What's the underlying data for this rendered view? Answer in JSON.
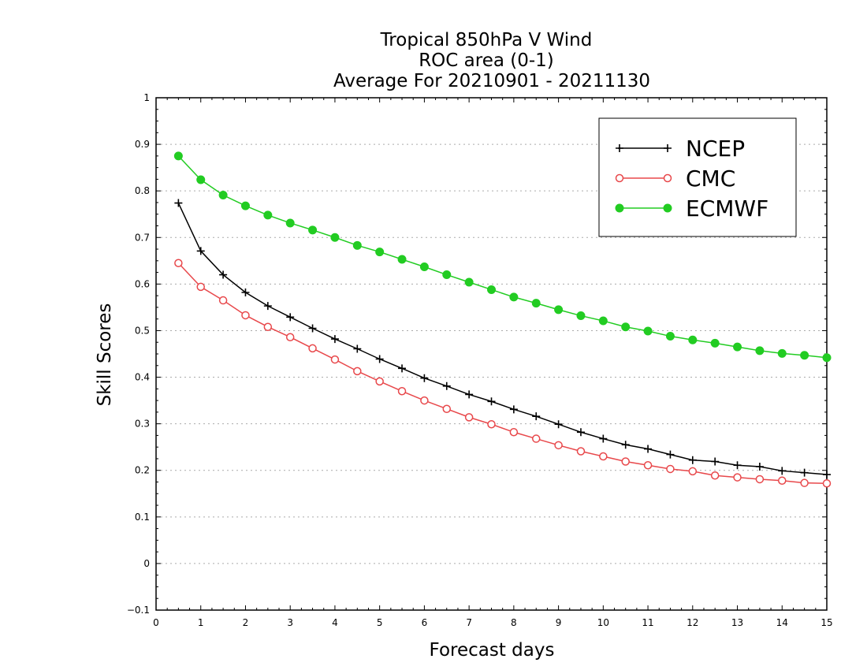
{
  "chart_data": {
    "type": "line",
    "title_lines": [
      "Tropical 850hPa V Wind",
      "ROC area (0-1)",
      "Average For 20210901 - 20211130"
    ],
    "xlabel": "Forecast days",
    "ylabel": "Skill Scores",
    "xlim": [
      0,
      15
    ],
    "ylim": [
      -0.1,
      1
    ],
    "x_ticks": [
      "0",
      "1",
      "2",
      "3",
      "4",
      "5",
      "6",
      "7",
      "8",
      "9",
      "10",
      "11",
      "12",
      "13",
      "14",
      "15"
    ],
    "y_ticks": [
      "−0.1",
      "0",
      "0.1",
      "0.2",
      "0.3",
      "0.4",
      "0.5",
      "0.6",
      "0.7",
      "0.8",
      "0.9",
      "1"
    ],
    "grid": "horizontal dotted",
    "legend_position": "top-right",
    "x": [
      0.5,
      1,
      1.5,
      2,
      2.5,
      3,
      3.5,
      4,
      4.5,
      5,
      5.5,
      6,
      6.5,
      7,
      7.5,
      8,
      8.5,
      9,
      9.5,
      10,
      10.5,
      11,
      11.5,
      12,
      12.5,
      13,
      13.5,
      14,
      14.5,
      15
    ],
    "series": [
      {
        "name": "NCEP",
        "color": "#000000",
        "marker": "plus",
        "values": [
          0.774,
          0.671,
          0.62,
          0.582,
          0.553,
          0.529,
          0.505,
          0.482,
          0.461,
          0.439,
          0.419,
          0.398,
          0.381,
          0.363,
          0.348,
          0.331,
          0.316,
          0.299,
          0.282,
          0.268,
          0.255,
          0.246,
          0.234,
          0.222,
          0.219,
          0.211,
          0.208,
          0.199,
          0.195,
          0.191
        ]
      },
      {
        "name": "CMC",
        "color": "#e8484b",
        "marker": "open-circle",
        "values": [
          0.645,
          0.594,
          0.565,
          0.533,
          0.508,
          0.486,
          0.462,
          0.438,
          0.413,
          0.391,
          0.37,
          0.35,
          0.332,
          0.314,
          0.299,
          0.282,
          0.268,
          0.254,
          0.241,
          0.23,
          0.219,
          0.211,
          0.203,
          0.198,
          0.189,
          0.185,
          0.181,
          0.178,
          0.173,
          0.172
        ]
      },
      {
        "name": "ECMWF",
        "color": "#22cc22",
        "marker": "filled-circle",
        "values": [
          0.875,
          0.824,
          0.791,
          0.768,
          0.748,
          0.731,
          0.716,
          0.7,
          0.683,
          0.669,
          0.653,
          0.637,
          0.62,
          0.604,
          0.588,
          0.572,
          0.559,
          0.545,
          0.532,
          0.521,
          0.508,
          0.499,
          0.488,
          0.48,
          0.473,
          0.465,
          0.457,
          0.451,
          0.447,
          0.442
        ]
      }
    ]
  }
}
